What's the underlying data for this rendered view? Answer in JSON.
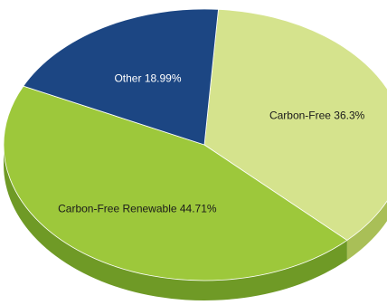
{
  "chart_data": {
    "type": "pie",
    "slices": [
      {
        "label": "Carbon-Free",
        "value": 36.3,
        "display": "Carbon-Free 36.3%",
        "color": "#d5e38d",
        "side_color": "#a9bf57",
        "label_color": "#1a1a1a"
      },
      {
        "label": "Carbon-Free Renewable",
        "value": 44.71,
        "display": "Carbon-Free Renewable 44.71%",
        "color": "#9dc83b",
        "side_color": "#6f9a26",
        "label_color": "#1a1a1a"
      },
      {
        "label": "Other",
        "value": 18.99,
        "display": "Other 18.99%",
        "color": "#1c4683",
        "side_color": "#13325f",
        "label_color": "#ffffff"
      }
    ],
    "three_d": true,
    "legend": "none"
  }
}
